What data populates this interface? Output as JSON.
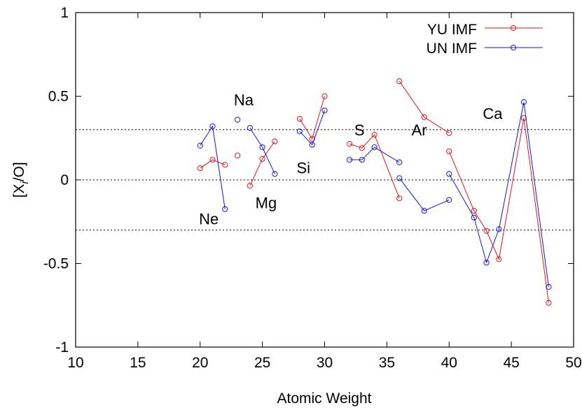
{
  "chart_data": {
    "type": "line",
    "xlabel": "Atomic Weight",
    "ylabel_main": "[X",
    "ylabel_sub": "i",
    "ylabel_tail": "/O]",
    "xlim": [
      10,
      50
    ],
    "ylim": [
      -1,
      1
    ],
    "xticks": [
      "10",
      "15",
      "20",
      "25",
      "30",
      "35",
      "40",
      "45",
      "50"
    ],
    "yticks": [
      "-1",
      "-0.5",
      "0",
      "0.5",
      "1"
    ],
    "reference_lines": [
      0.3,
      0,
      -0.3
    ],
    "grid": false,
    "legend_position": "top-right",
    "series": [
      {
        "name": "YU IMF",
        "color": "#e8141c",
        "segments": [
          [
            [
              20,
              0.07
            ],
            [
              21,
              0.12
            ],
            [
              22,
              0.09
            ]
          ],
          [
            [
              23,
              0.145
            ]
          ],
          [
            [
              24,
              -0.035
            ],
            [
              25,
              0.125
            ],
            [
              26,
              0.23
            ]
          ],
          [
            [
              28,
              0.365
            ],
            [
              29,
              0.245
            ],
            [
              30,
              0.5
            ]
          ],
          [
            [
              32,
              0.215
            ],
            [
              33,
              0.19
            ],
            [
              34,
              0.27
            ],
            [
              36,
              -0.11
            ]
          ],
          [
            [
              36,
              0.59
            ],
            [
              38,
              0.375
            ],
            [
              40,
              0.28
            ]
          ],
          [
            [
              40,
              0.17
            ],
            [
              42,
              -0.185
            ],
            [
              43,
              -0.305
            ],
            [
              44,
              -0.475
            ],
            [
              46,
              0.37
            ],
            [
              48,
              -0.735
            ]
          ]
        ]
      },
      {
        "name": "UN IMF",
        "color": "#1414e6",
        "segments": [
          [
            [
              20,
              0.205
            ],
            [
              21,
              0.32
            ],
            [
              22,
              -0.175
            ]
          ],
          [
            [
              23,
              0.36
            ]
          ],
          [
            [
              24,
              0.31
            ],
            [
              25,
              0.195
            ],
            [
              26,
              0.035
            ]
          ],
          [
            [
              28,
              0.29
            ],
            [
              29,
              0.21
            ],
            [
              30,
              0.415
            ]
          ],
          [
            [
              32,
              0.12
            ],
            [
              33,
              0.12
            ],
            [
              34,
              0.195
            ],
            [
              36,
              0.105
            ]
          ],
          [
            [
              36,
              0.01
            ],
            [
              38,
              -0.185
            ],
            [
              40,
              -0.12
            ]
          ],
          [
            [
              40,
              0.035
            ],
            [
              42,
              -0.225
            ],
            [
              43,
              -0.495
            ],
            [
              44,
              -0.295
            ],
            [
              46,
              0.465
            ],
            [
              48,
              -0.64
            ]
          ]
        ]
      }
    ],
    "annotations": [
      {
        "text": "Na",
        "x": 23.5,
        "y": 0.445
      },
      {
        "text": "Ne",
        "x": 20.7,
        "y": -0.265
      },
      {
        "text": "Mg",
        "x": 25.3,
        "y": -0.17
      },
      {
        "text": "Si",
        "x": 28.3,
        "y": 0.04
      },
      {
        "text": "S",
        "x": 32.8,
        "y": 0.265
      },
      {
        "text": "Ar",
        "x": 37.6,
        "y": 0.265
      },
      {
        "text": "Ca",
        "x": 43.5,
        "y": 0.365
      }
    ]
  }
}
